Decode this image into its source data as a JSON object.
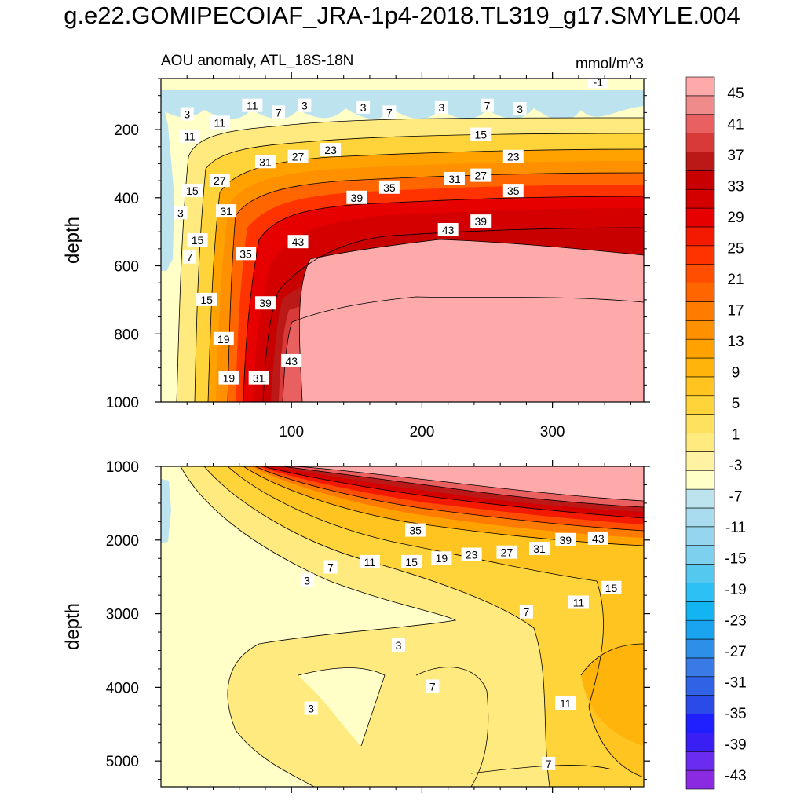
{
  "title": "g.e22.GOMIPECOIAF_JRA-1p4-2018.TL319_g17.SMYLE.004",
  "colors": {
    "levels": [
      "#8a2be2",
      "#6a2cf0",
      "#3a1ff5",
      "#2020ff",
      "#2a4be8",
      "#2f62e4",
      "#3a7ae6",
      "#2e8fe8",
      "#1aa3ee",
      "#12b5f2",
      "#2cc0f5",
      "#55c8f0",
      "#7dd1ef",
      "#95d6ee",
      "#a8dcee",
      "#bde3ef",
      "#ffffc7",
      "#fff2a3",
      "#ffea80",
      "#ffe160",
      "#ffd43a",
      "#ffc420",
      "#ffb40c",
      "#ffa200",
      "#ff9000",
      "#ff7c00",
      "#ff6600",
      "#ff4e00",
      "#ff3300",
      "#f41a00",
      "#e60000",
      "#d40000",
      "#c80000",
      "#bb1818",
      "#d83a3a",
      "#e86060",
      "#f08b8b",
      "#ffaaaa"
    ],
    "axis": "#000000",
    "contour_line": "#000000"
  },
  "chart_data": [
    {
      "type": "heatmap",
      "panel": "upper",
      "title": "AOU anomaly, ATL_18S-18N",
      "units": "mmol/m^3",
      "xlabel": "",
      "ylabel": "depth",
      "xlim": [
        0,
        370
      ],
      "ylim": [
        1000,
        50
      ],
      "x_ticks": [
        100,
        200,
        300
      ],
      "y_ticks": [
        200,
        400,
        600,
        800,
        1000
      ],
      "contour_labels": [
        {
          "v": "3",
          "x": 20,
          "y": 155
        },
        {
          "v": "11",
          "x": 70,
          "y": 130
        },
        {
          "v": "7",
          "x": 90,
          "y": 150
        },
        {
          "v": "3",
          "x": 110,
          "y": 130
        },
        {
          "v": "3",
          "x": 155,
          "y": 135
        },
        {
          "v": "7",
          "x": 175,
          "y": 150
        },
        {
          "v": "3",
          "x": 215,
          "y": 135
        },
        {
          "v": "7",
          "x": 250,
          "y": 130
        },
        {
          "v": "3",
          "x": 275,
          "y": 140
        },
        {
          "v": "-1",
          "x": 335,
          "y": 60
        },
        {
          "v": "11",
          "x": 45,
          "y": 180
        },
        {
          "v": "11",
          "x": 22,
          "y": 220
        },
        {
          "v": "23",
          "x": 130,
          "y": 260
        },
        {
          "v": "15",
          "x": 245,
          "y": 215
        },
        {
          "v": "27",
          "x": 105,
          "y": 280
        },
        {
          "v": "31",
          "x": 80,
          "y": 295
        },
        {
          "v": "23",
          "x": 270,
          "y": 280
        },
        {
          "v": "31",
          "x": 225,
          "y": 345
        },
        {
          "v": "27",
          "x": 245,
          "y": 335
        },
        {
          "v": "15",
          "x": 24,
          "y": 380
        },
        {
          "v": "27",
          "x": 45,
          "y": 350
        },
        {
          "v": "39",
          "x": 150,
          "y": 400
        },
        {
          "v": "35",
          "x": 175,
          "y": 370
        },
        {
          "v": "35",
          "x": 270,
          "y": 380
        },
        {
          "v": "3",
          "x": 15,
          "y": 445
        },
        {
          "v": "31",
          "x": 50,
          "y": 440
        },
        {
          "v": "43",
          "x": 220,
          "y": 495
        },
        {
          "v": "39",
          "x": 245,
          "y": 470
        },
        {
          "v": "15",
          "x": 28,
          "y": 525
        },
        {
          "v": "43",
          "x": 105,
          "y": 530
        },
        {
          "v": "35",
          "x": 65,
          "y": 565
        },
        {
          "v": "7",
          "x": 22,
          "y": 575
        },
        {
          "v": "39",
          "x": 80,
          "y": 710
        },
        {
          "v": "15",
          "x": 35,
          "y": 700
        },
        {
          "v": "19",
          "x": 48,
          "y": 815
        },
        {
          "v": "43",
          "x": 100,
          "y": 880
        },
        {
          "v": "19",
          "x": 52,
          "y": 930
        },
        {
          "v": "31",
          "x": 75,
          "y": 930
        }
      ]
    },
    {
      "type": "heatmap",
      "panel": "lower",
      "title": "",
      "units": "",
      "xlabel": "",
      "ylabel": "depth",
      "xlim": [
        0,
        370
      ],
      "ylim": [
        5350,
        1000
      ],
      "x_ticks": [
        100,
        200,
        300
      ],
      "y_ticks": [
        1000,
        2000,
        3000,
        4000,
        5000
      ],
      "contour_labels": [
        {
          "v": "35",
          "x": 195,
          "y": 1870
        },
        {
          "v": "39",
          "x": 310,
          "y": 2000
        },
        {
          "v": "43",
          "x": 335,
          "y": 1980
        },
        {
          "v": "31",
          "x": 290,
          "y": 2120
        },
        {
          "v": "27",
          "x": 265,
          "y": 2170
        },
        {
          "v": "23",
          "x": 238,
          "y": 2200
        },
        {
          "v": "19",
          "x": 215,
          "y": 2250
        },
        {
          "v": "15",
          "x": 192,
          "y": 2300
        },
        {
          "v": "11",
          "x": 160,
          "y": 2300
        },
        {
          "v": "7",
          "x": 130,
          "y": 2370
        },
        {
          "v": "3",
          "x": 112,
          "y": 2550
        },
        {
          "v": "15",
          "x": 345,
          "y": 2650
        },
        {
          "v": "11",
          "x": 320,
          "y": 2850
        },
        {
          "v": "7",
          "x": 280,
          "y": 2980
        },
        {
          "v": "3",
          "x": 182,
          "y": 3430
        },
        {
          "v": "7",
          "x": 208,
          "y": 3990
        },
        {
          "v": "3",
          "x": 115,
          "y": 4290
        },
        {
          "v": "11",
          "x": 310,
          "y": 4220
        },
        {
          "v": "7",
          "x": 297,
          "y": 5040
        }
      ]
    },
    {
      "type": "colorbar",
      "tick_labels": [
        "45",
        "41",
        "37",
        "33",
        "29",
        "25",
        "21",
        "17",
        "13",
        "9",
        "5",
        "1",
        "-3",
        "-7",
        "-11",
        "-15",
        "-19",
        "-23",
        "-27",
        "-31",
        "-35",
        "-39",
        "-43"
      ]
    }
  ]
}
